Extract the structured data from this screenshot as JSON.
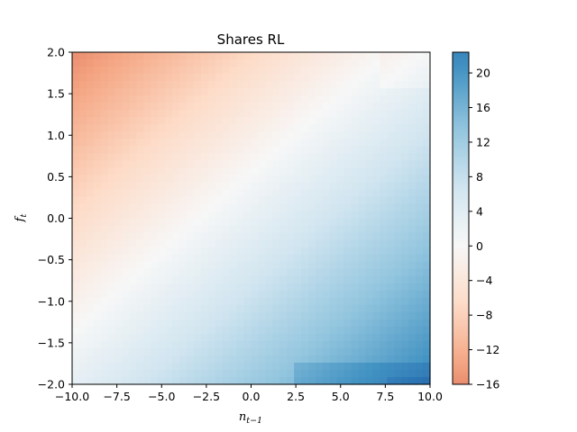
{
  "chart_data": {
    "type": "heatmap",
    "title": "Shares RL",
    "xlabel_base": "n",
    "xlabel_sub": "t−1",
    "ylabel_base": "f",
    "ylabel_sub": "t",
    "xlim": [
      -10,
      10
    ],
    "ylim": [
      -2,
      2
    ],
    "x_ticks": [
      -10,
      -7.5,
      -5,
      -2.5,
      0,
      2.5,
      5,
      7.5,
      10
    ],
    "x_tick_labels": [
      "−10.0",
      "−7.5",
      "−5.0",
      "−2.5",
      "0.0",
      "2.5",
      "5.0",
      "7.5",
      "10.0"
    ],
    "y_ticks": [
      -2,
      -1.5,
      -1,
      -0.5,
      0,
      0.5,
      1,
      1.5,
      2
    ],
    "y_tick_labels": [
      "−2.0",
      "−1.5",
      "−1.0",
      "−0.5",
      "0.0",
      "0.5",
      "1.0",
      "1.5",
      "2.0"
    ],
    "colorbar": {
      "colormap": "RdBu",
      "vmin": -16,
      "vmax": 22.4,
      "ticks": [
        -16,
        -12,
        -8,
        -4,
        0,
        4,
        8,
        12,
        16,
        20
      ],
      "tick_labels": [
        "−16",
        "−12",
        "−8",
        "−4",
        "0",
        "4",
        "8",
        "12",
        "16",
        "20"
      ]
    },
    "grid": false,
    "corner_values": {
      "top_left": -16,
      "top_right": 2,
      "bottom_left": 3,
      "bottom_right": 22
    },
    "colors": {
      "low": "#d6604d",
      "mid": "#f7f7f7",
      "high": "#2166ac"
    }
  }
}
